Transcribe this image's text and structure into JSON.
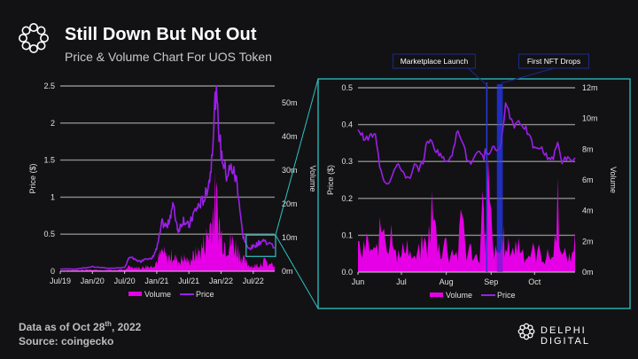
{
  "header": {
    "title": "Still Down But Not Out",
    "subtitle": "Price & Volume Chart For UOS Token",
    "logo_icon": "delphi-knot-icon"
  },
  "footer": {
    "data_as_of_prefix": "Data as of Oct 28",
    "data_as_of_sup": "th",
    "data_as_of_suffix": ", 2022",
    "source": "Source: coingecko",
    "brand": "DELPHI DIGITAL"
  },
  "colors": {
    "background": "#121214",
    "volume": "#e600e6",
    "price": "#9b1fe8",
    "highlight_box": "#2fc2c2",
    "event_band": "#2233cc",
    "gridline": "#8c8c8c"
  },
  "chart_data": [
    {
      "type": "area+line",
      "title": "UOS Price & Volume (full history)",
      "xlabel": "",
      "ylabel": "Price ($)",
      "y2label": "Volume",
      "x_ticks": [
        "Jul/19",
        "Jan/20",
        "Jul/20",
        "Jan/21",
        "Jul/21",
        "Jan/22",
        "Jul/22"
      ],
      "y_ticks": [
        "0",
        "0.5",
        "1",
        "1.5",
        "2",
        "2.5"
      ],
      "y2_ticks": [
        "0m",
        "10m",
        "20m",
        "30m",
        "40m",
        "50m"
      ],
      "ylim": [
        0,
        2.5
      ],
      "y2lim": [
        0,
        55
      ],
      "grid": true,
      "legend": {
        "position": "bottom",
        "entries": [
          "Volume",
          "Price"
        ]
      },
      "x": [
        "2019-07",
        "2019-10",
        "2020-01",
        "2020-04",
        "2020-07",
        "2020-08",
        "2020-09",
        "2020-10",
        "2020-11",
        "2020-12",
        "2021-01",
        "2021-02",
        "2021-03",
        "2021-04",
        "2021-05",
        "2021-06",
        "2021-07",
        "2021-08",
        "2021-09",
        "2021-10",
        "2021-11",
        "2021-12",
        "2022-01",
        "2022-02",
        "2022-03",
        "2022-04",
        "2022-05",
        "2022-06",
        "2022-07",
        "2022-08",
        "2022-09",
        "2022-10"
      ],
      "series": [
        {
          "name": "Price",
          "axis": "left",
          "values": [
            0.03,
            0.03,
            0.06,
            0.04,
            0.05,
            0.2,
            0.15,
            0.13,
            0.18,
            0.16,
            0.3,
            0.65,
            0.6,
            0.9,
            0.55,
            0.7,
            0.6,
            0.8,
            0.9,
            1.0,
            1.3,
            2.4,
            1.6,
            1.3,
            1.4,
            1.2,
            0.5,
            0.3,
            0.33,
            0.38,
            0.42,
            0.32
          ]
        },
        {
          "name": "Volume",
          "axis": "right",
          "values": [
            0.3,
            0.3,
            0.5,
            0.4,
            0.5,
            1.5,
            1.2,
            1.0,
            1.5,
            1.5,
            3.0,
            6.0,
            4.0,
            5.0,
            3.0,
            4.0,
            3.0,
            5.0,
            6.0,
            9.0,
            14.0,
            22.0,
            11.0,
            8.0,
            9.0,
            7.0,
            4.0,
            2.0,
            1.5,
            2.0,
            3.0,
            1.5
          ]
        }
      ],
      "highlight_region": {
        "x_start": "2022-06",
        "x_end": "2022-10",
        "y_start": 0.2,
        "y_end": 0.5
      }
    },
    {
      "type": "area+line",
      "title": "UOS Price & Volume (Jun–Oct 2022 zoom)",
      "xlabel": "",
      "ylabel": "Price ($)",
      "y2label": "Volume",
      "x_ticks": [
        "Jun",
        "Jul",
        "Aug",
        "Sep",
        "Oct"
      ],
      "y_ticks": [
        "0.0",
        "0.1",
        "0.2",
        "0.3",
        "0.4",
        "0.5"
      ],
      "y2_ticks": [
        "0m",
        "2m",
        "4m",
        "6m",
        "8m",
        "10m",
        "12m"
      ],
      "ylim": [
        0,
        0.5
      ],
      "y2lim": [
        0,
        12
      ],
      "grid": true,
      "legend": {
        "position": "bottom",
        "entries": [
          "Volume",
          "Price"
        ]
      },
      "annotations": [
        {
          "label": "Marketplace Launch",
          "date": "2022-08-29",
          "style": "line"
        },
        {
          "label": "First NFT Drops",
          "date_start": "2022-09-05",
          "date_end": "2022-09-09",
          "style": "band"
        }
      ],
      "x_days": [
        0,
        3,
        6,
        9,
        12,
        15,
        18,
        21,
        24,
        27,
        30,
        33,
        36,
        39,
        42,
        45,
        48,
        51,
        54,
        57,
        60,
        63,
        66,
        69,
        72,
        75,
        78,
        81,
        84,
        87,
        88,
        90,
        93,
        96,
        99,
        100,
        102,
        105,
        108,
        111,
        114,
        117,
        120,
        123,
        126,
        129,
        132,
        135,
        138,
        141,
        144,
        147,
        150
      ],
      "x_origin": "2022-06-01",
      "series": [
        {
          "name": "Price",
          "axis": "left",
          "values": [
            0.39,
            0.37,
            0.36,
            0.37,
            0.37,
            0.29,
            0.25,
            0.24,
            0.27,
            0.29,
            0.28,
            0.26,
            0.25,
            0.29,
            0.28,
            0.3,
            0.36,
            0.35,
            0.33,
            0.32,
            0.3,
            0.31,
            0.33,
            0.39,
            0.36,
            0.31,
            0.29,
            0.31,
            0.33,
            0.31,
            0.33,
            0.32,
            0.34,
            0.33,
            0.35,
            0.38,
            0.47,
            0.42,
            0.4,
            0.41,
            0.4,
            0.38,
            0.35,
            0.33,
            0.34,
            0.32,
            0.31,
            0.31,
            0.35,
            0.3,
            0.31,
            0.3,
            0.31
          ]
        },
        {
          "name": "Volume",
          "axis": "right",
          "values": [
            1.8,
            1.2,
            2.0,
            1.5,
            1.2,
            2.5,
            3.5,
            1.6,
            3.3,
            1.2,
            1.0,
            2.3,
            1.2,
            0.8,
            1.3,
            2.0,
            1.6,
            4.2,
            2.5,
            1.3,
            2.2,
            1.1,
            1.6,
            1.0,
            4.3,
            1.2,
            1.5,
            1.0,
            1.2,
            5.5,
            1.0,
            6.0,
            1.8,
            1.0,
            1.6,
            2.6,
            1.2,
            1.8,
            1.5,
            2.0,
            1.4,
            1.0,
            1.5,
            1.2,
            1.4,
            0.8,
            1.2,
            1.0,
            4.8,
            1.0,
            1.2,
            0.8,
            2.6
          ]
        }
      ]
    }
  ]
}
